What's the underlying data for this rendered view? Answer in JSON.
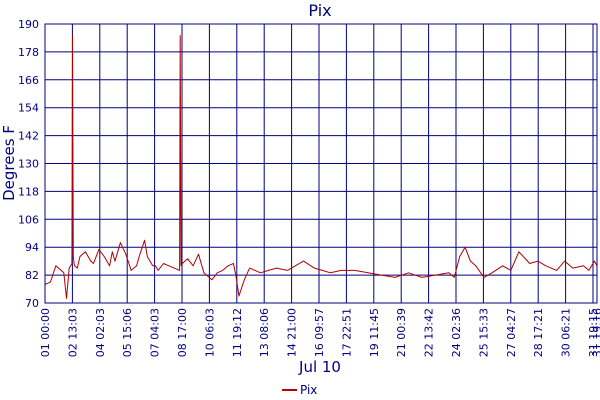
{
  "colors": {
    "axis": "#000080",
    "grid": "#000080",
    "series": "#b00000",
    "background": "#ffffff"
  },
  "chart_data": {
    "type": "line",
    "title": "Pix",
    "xlabel": "Jul 10",
    "ylabel": "Degrees F",
    "ylim": [
      70,
      190
    ],
    "y_ticks": [
      70,
      82,
      94,
      106,
      118,
      130,
      142,
      154,
      166,
      178,
      190
    ],
    "x_ticks": [
      "01 00:00",
      "02 13:03",
      "04 02:03",
      "05 15:06",
      "07 04:03",
      "08 17:00",
      "10 06:03",
      "11 19:12",
      "13 08:06",
      "14 21:00",
      "16 09:57",
      "17 22:51",
      "19 11:45",
      "21 00:39",
      "22 13:42",
      "24 02:36",
      "25 15:33",
      "27 04:27",
      "28 17:21",
      "30 06:21",
      "31 19:15",
      "31 19:16"
    ],
    "x_range": [
      0,
      20.5
    ],
    "grid": true,
    "legend": {
      "position": "bottom-center",
      "entries": [
        "Pix"
      ]
    },
    "series": [
      {
        "name": "Pix",
        "x": [
          0,
          0.2,
          0.4,
          0.6,
          0.7,
          0.8,
          0.9,
          1.0,
          1.02,
          1.05,
          1.08,
          1.1,
          1.2,
          1.3,
          1.5,
          1.7,
          1.8,
          2.0,
          2.2,
          2.4,
          2.5,
          2.6,
          2.8,
          3.0,
          3.2,
          3.4,
          3.5,
          3.7,
          3.8,
          4.0,
          4.1,
          4.2,
          4.4,
          4.6,
          4.8,
          5.0,
          5.02,
          5.05,
          5.08,
          5.1,
          5.3,
          5.5,
          5.7,
          5.9,
          6.0,
          6.2,
          6.4,
          6.6,
          6.8,
          7.0,
          7.1,
          7.2,
          7.4,
          7.6,
          7.8,
          8.0,
          8.3,
          8.6,
          9.0,
          9.3,
          9.6,
          10.0,
          10.3,
          10.6,
          11.0,
          11.5,
          12.0,
          12.5,
          13.0,
          13.5,
          14.0,
          14.5,
          15.0,
          15.2,
          15.4,
          15.6,
          15.8,
          16.0,
          16.3,
          16.6,
          17.0,
          17.3,
          17.6,
          18.0,
          18.3,
          18.6,
          19.0,
          19.3,
          19.6,
          20.0,
          20.2,
          20.4,
          20.5
        ],
        "values": [
          78,
          79,
          86,
          84,
          83,
          72,
          85,
          87,
          185,
          90,
          87,
          86,
          85,
          90,
          92,
          88,
          87,
          93,
          90,
          86,
          92,
          88,
          96,
          91,
          84,
          86,
          90,
          97,
          90,
          86,
          86,
          84,
          87,
          86,
          85,
          84,
          185,
          86,
          86,
          87,
          89,
          86,
          91,
          83,
          82,
          80,
          83,
          84,
          86,
          87,
          81,
          73,
          80,
          85,
          84,
          83,
          84,
          85,
          84,
          86,
          88,
          85,
          84,
          83,
          84,
          84,
          83,
          82,
          81,
          83,
          81,
          82,
          83,
          81,
          90,
          94,
          88,
          86,
          81,
          83,
          86,
          84,
          92,
          87,
          88,
          86,
          84,
          88,
          85,
          86,
          84,
          88,
          86
        ]
      }
    ]
  }
}
